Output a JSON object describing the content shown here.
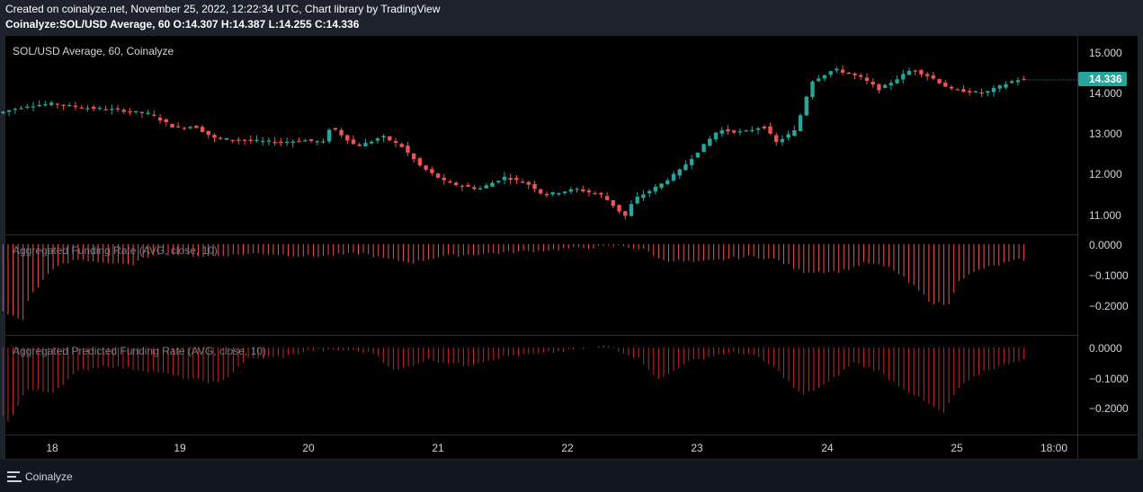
{
  "header": {
    "line1": "Created on coinalyze.net, November 25, 2022, 12:22:34 UTC, Chart library by TradingView",
    "symbol": "Coinalyze:SOL/USD Average, 60",
    "o_label": "O:",
    "o_value": "14.307",
    "h_label": "H:",
    "h_value": "14.387",
    "l_label": "L:",
    "l_value": "14.255",
    "c_label": "C:",
    "c_value": "14.336"
  },
  "footer": {
    "brand": "Coinalyze"
  },
  "colors": {
    "background": "#000000",
    "frame": "#1e222d",
    "up": "#26a69a",
    "down": "#ef5350",
    "funding": "#ef5350",
    "predicted": "#c62828",
    "last_price_bg": "#26a69a"
  },
  "chart_data": [
    {
      "type": "candlestick",
      "title": "SOL/USD Average, 60, Coinalyze",
      "y_ticks": [
        "15.000",
        "14.000",
        "13.000",
        "12.000",
        "11.000"
      ],
      "last_price": "14.336",
      "x_ticks": [
        "18",
        "19",
        "20",
        "21",
        "22",
        "23",
        "24",
        "25",
        "18:00"
      ],
      "anchors": [
        [
          17.6,
          13.5
        ],
        [
          17.85,
          13.7
        ],
        [
          18.05,
          13.75
        ],
        [
          18.3,
          13.65
        ],
        [
          18.55,
          13.6
        ],
        [
          18.8,
          13.5
        ],
        [
          19.0,
          13.15
        ],
        [
          19.15,
          13.2
        ],
        [
          19.3,
          12.9
        ],
        [
          19.55,
          12.85
        ],
        [
          19.8,
          12.8
        ],
        [
          20.0,
          12.85
        ],
        [
          20.15,
          12.8
        ],
        [
          20.2,
          13.2
        ],
        [
          20.4,
          12.7
        ],
        [
          20.5,
          12.8
        ],
        [
          20.6,
          12.95
        ],
        [
          20.75,
          12.7
        ],
        [
          20.9,
          12.2
        ],
        [
          21.1,
          11.8
        ],
        [
          21.35,
          11.65
        ],
        [
          21.55,
          11.95
        ],
        [
          21.75,
          11.75
        ],
        [
          21.85,
          11.5
        ],
        [
          22.1,
          11.65
        ],
        [
          22.3,
          11.5
        ],
        [
          22.48,
          10.98
        ],
        [
          22.55,
          11.4
        ],
        [
          22.75,
          11.75
        ],
        [
          22.9,
          12.1
        ],
        [
          23.05,
          12.6
        ],
        [
          23.2,
          13.1
        ],
        [
          23.4,
          13.05
        ],
        [
          23.55,
          13.2
        ],
        [
          23.65,
          12.8
        ],
        [
          23.8,
          13.1
        ],
        [
          23.92,
          14.3
        ],
        [
          24.1,
          14.6
        ],
        [
          24.3,
          14.4
        ],
        [
          24.45,
          14.1
        ],
        [
          24.7,
          14.6
        ],
        [
          24.85,
          14.4
        ],
        [
          25.0,
          14.1
        ],
        [
          25.15,
          14.05
        ],
        [
          25.25,
          14.0
        ],
        [
          25.5,
          14.34
        ]
      ]
    },
    {
      "type": "bar",
      "title": "Aggregated Funding Rate (AVG, close, 10)",
      "y_ticks": [
        "0.0000",
        "−0.1000",
        "−0.2000"
      ],
      "anchors": [
        [
          17.6,
          -0.22
        ],
        [
          17.78,
          -0.25
        ],
        [
          17.8,
          -0.19
        ],
        [
          18.0,
          -0.08
        ],
        [
          18.2,
          -0.05
        ],
        [
          18.6,
          -0.07
        ],
        [
          18.8,
          -0.03
        ],
        [
          19.2,
          -0.04
        ],
        [
          19.6,
          -0.03
        ],
        [
          20.0,
          -0.04
        ],
        [
          20.4,
          -0.03
        ],
        [
          20.6,
          -0.05
        ],
        [
          20.8,
          -0.06
        ],
        [
          21.0,
          -0.04
        ],
        [
          21.4,
          -0.03
        ],
        [
          21.8,
          -0.02
        ],
        [
          22.2,
          -0.01
        ],
        [
          22.4,
          -0.005
        ],
        [
          22.6,
          -0.02
        ],
        [
          22.7,
          -0.05
        ],
        [
          23.0,
          -0.06
        ],
        [
          23.4,
          -0.04
        ],
        [
          23.6,
          -0.05
        ],
        [
          23.8,
          -0.09
        ],
        [
          24.1,
          -0.09
        ],
        [
          24.3,
          -0.06
        ],
        [
          24.5,
          -0.08
        ],
        [
          24.7,
          -0.15
        ],
        [
          24.8,
          -0.19
        ],
        [
          24.95,
          -0.2
        ],
        [
          25.0,
          -0.12
        ],
        [
          25.2,
          -0.08
        ],
        [
          25.5,
          -0.05
        ]
      ]
    },
    {
      "type": "bar",
      "title": "Aggregated Predicted Funding Rate (AVG, close, 10)",
      "y_ticks": [
        "0.0000",
        "−0.1000",
        "−0.2000"
      ],
      "anchors": [
        [
          17.6,
          -0.22
        ],
        [
          17.66,
          -0.25
        ],
        [
          17.8,
          -0.14
        ],
        [
          18.0,
          -0.15
        ],
        [
          18.2,
          -0.08
        ],
        [
          18.4,
          -0.06
        ],
        [
          18.6,
          -0.07
        ],
        [
          18.8,
          -0.08
        ],
        [
          19.0,
          -0.1
        ],
        [
          19.3,
          -0.12
        ],
        [
          19.5,
          -0.04
        ],
        [
          19.8,
          -0.03
        ],
        [
          20.0,
          -0.01
        ],
        [
          20.3,
          -0.01
        ],
        [
          20.5,
          -0.02
        ],
        [
          20.65,
          -0.08
        ],
        [
          20.9,
          -0.04
        ],
        [
          21.2,
          -0.06
        ],
        [
          21.5,
          -0.03
        ],
        [
          21.8,
          -0.02
        ],
        [
          22.0,
          -0.01
        ],
        [
          22.3,
          0.005
        ],
        [
          22.55,
          -0.04
        ],
        [
          22.7,
          -0.11
        ],
        [
          22.9,
          -0.05
        ],
        [
          23.2,
          -0.02
        ],
        [
          23.4,
          -0.02
        ],
        [
          23.6,
          -0.07
        ],
        [
          23.8,
          -0.16
        ],
        [
          24.0,
          -0.12
        ],
        [
          24.2,
          -0.05
        ],
        [
          24.4,
          -0.08
        ],
        [
          24.6,
          -0.14
        ],
        [
          24.75,
          -0.18
        ],
        [
          24.9,
          -0.22
        ],
        [
          25.0,
          -0.14
        ],
        [
          25.2,
          -0.08
        ],
        [
          25.5,
          -0.04
        ]
      ]
    }
  ]
}
